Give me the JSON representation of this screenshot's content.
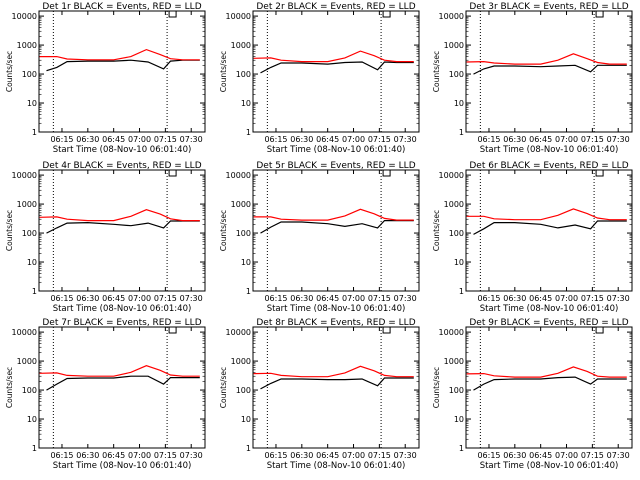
{
  "figure": {
    "ylabel": "Counts/sec",
    "xlabel": "Start Time (08-Nov-10 06:01:40)",
    "xticks": [
      "06:15",
      "06:30",
      "06:45",
      "07:00",
      "07:15",
      "07:30"
    ],
    "yticks": [
      "1",
      "10",
      "100",
      "1000",
      "10000"
    ]
  },
  "chart_data": [
    {
      "type": "line",
      "title": "Det 1r BLACK = Events, RED = LLD",
      "ylabel": "Counts/sec",
      "xlabel": "Start Time (08-Nov-10 06:01:40)",
      "yscale": "log",
      "ylim": [
        1,
        15000
      ],
      "xlim": [
        "06:01:40",
        "07:38:00"
      ],
      "markers": [
        "06:10",
        "07:16"
      ],
      "series": [
        {
          "name": "Events",
          "color": "#000000",
          "x": [
            "06:06",
            "06:12",
            "06:18",
            "06:30",
            "06:45",
            "06:55",
            "07:05",
            "07:14",
            "07:18",
            "07:25",
            "07:35"
          ],
          "values": [
            130,
            170,
            270,
            280,
            280,
            300,
            260,
            150,
            280,
            300,
            300
          ]
        },
        {
          "name": "LLD",
          "color": "#ff0000",
          "x": [
            "06:02",
            "06:12",
            "06:18",
            "06:30",
            "06:45",
            "06:55",
            "07:04",
            "07:12",
            "07:18",
            "07:25",
            "07:35"
          ],
          "values": [
            400,
            400,
            330,
            310,
            310,
            400,
            700,
            470,
            340,
            310,
            310
          ]
        }
      ]
    },
    {
      "type": "line",
      "title": "Det 2r BLACK = Events, RED = LLD",
      "ylabel": "Counts/sec",
      "xlabel": "Start Time (08-Nov-10 06:01:40)",
      "yscale": "log",
      "ylim": [
        1,
        15000
      ],
      "xlim": [
        "06:01:40",
        "07:38:00"
      ],
      "markers": [
        "06:10",
        "07:16"
      ],
      "series": [
        {
          "name": "Events",
          "color": "#000000",
          "x": [
            "06:06",
            "06:12",
            "06:18",
            "06:30",
            "06:45",
            "06:55",
            "07:05",
            "07:14",
            "07:18",
            "07:25",
            "07:35"
          ],
          "values": [
            110,
            170,
            240,
            240,
            220,
            250,
            260,
            140,
            260,
            250,
            250
          ]
        },
        {
          "name": "LLD",
          "color": "#ff0000",
          "x": [
            "06:02",
            "06:12",
            "06:18",
            "06:30",
            "06:45",
            "06:55",
            "07:04",
            "07:12",
            "07:18",
            "07:25",
            "07:35"
          ],
          "values": [
            350,
            360,
            300,
            270,
            270,
            360,
            620,
            430,
            300,
            270,
            270
          ]
        }
      ]
    },
    {
      "type": "line",
      "title": "Det 3r BLACK = Events, RED = LLD",
      "ylabel": "Counts/sec",
      "xlabel": "Start Time (08-Nov-10 06:01:40)",
      "yscale": "log",
      "ylim": [
        1,
        15000
      ],
      "xlim": [
        "06:01:40",
        "07:38:00"
      ],
      "markers": [
        "06:10",
        "07:16"
      ],
      "series": [
        {
          "name": "Events",
          "color": "#000000",
          "x": [
            "06:06",
            "06:12",
            "06:18",
            "06:30",
            "06:45",
            "06:55",
            "07:05",
            "07:14",
            "07:18",
            "07:25",
            "07:35"
          ],
          "values": [
            100,
            150,
            190,
            190,
            180,
            190,
            200,
            120,
            200,
            200,
            200
          ]
        },
        {
          "name": "LLD",
          "color": "#ff0000",
          "x": [
            "06:02",
            "06:12",
            "06:18",
            "06:30",
            "06:45",
            "06:55",
            "07:04",
            "07:12",
            "07:18",
            "07:25",
            "07:35"
          ],
          "values": [
            260,
            270,
            240,
            220,
            220,
            300,
            500,
            340,
            250,
            220,
            220
          ]
        }
      ]
    },
    {
      "type": "line",
      "title": "Det 4r BLACK = Events, RED = LLD",
      "ylabel": "Counts/sec",
      "xlabel": "Start Time (08-Nov-10 06:01:40)",
      "yscale": "log",
      "ylim": [
        1,
        15000
      ],
      "xlim": [
        "06:01:40",
        "07:38:00"
      ],
      "markers": [
        "06:10",
        "07:16"
      ],
      "series": [
        {
          "name": "Events",
          "color": "#000000",
          "x": [
            "06:06",
            "06:12",
            "06:18",
            "06:30",
            "06:45",
            "06:55",
            "07:05",
            "07:14",
            "07:18",
            "07:25",
            "07:35"
          ],
          "values": [
            100,
            150,
            220,
            230,
            200,
            180,
            220,
            150,
            260,
            260,
            260
          ]
        },
        {
          "name": "LLD",
          "color": "#ff0000",
          "x": [
            "06:02",
            "06:12",
            "06:18",
            "06:30",
            "06:45",
            "06:55",
            "07:04",
            "07:12",
            "07:18",
            "07:25",
            "07:35"
          ],
          "values": [
            350,
            360,
            300,
            270,
            270,
            380,
            640,
            450,
            310,
            270,
            270
          ]
        }
      ]
    },
    {
      "type": "line",
      "title": "Det 5r BLACK = Events, RED = LLD",
      "ylabel": "Counts/sec",
      "xlabel": "Start Time (08-Nov-10 06:01:40)",
      "yscale": "log",
      "ylim": [
        1,
        15000
      ],
      "xlim": [
        "06:01:40",
        "07:38:00"
      ],
      "markers": [
        "06:10",
        "07:16"
      ],
      "series": [
        {
          "name": "Events",
          "color": "#000000",
          "x": [
            "06:06",
            "06:12",
            "06:18",
            "06:30",
            "06:45",
            "06:55",
            "07:05",
            "07:14",
            "07:18",
            "07:25",
            "07:35"
          ],
          "values": [
            100,
            160,
            240,
            240,
            210,
            170,
            210,
            150,
            270,
            270,
            270
          ]
        },
        {
          "name": "LLD",
          "color": "#ff0000",
          "x": [
            "06:02",
            "06:12",
            "06:18",
            "06:30",
            "06:45",
            "06:55",
            "07:04",
            "07:12",
            "07:18",
            "07:25",
            "07:35"
          ],
          "values": [
            360,
            360,
            300,
            280,
            280,
            390,
            660,
            460,
            320,
            280,
            280
          ]
        }
      ]
    },
    {
      "type": "line",
      "title": "Det 6r BLACK = Events, RED = LLD",
      "ylabel": "Counts/sec",
      "xlabel": "Start Time (08-Nov-10 06:01:40)",
      "yscale": "log",
      "ylim": [
        1,
        15000
      ],
      "xlim": [
        "06:01:40",
        "07:38:00"
      ],
      "markers": [
        "06:10",
        "07:16"
      ],
      "series": [
        {
          "name": "Events",
          "color": "#000000",
          "x": [
            "06:06",
            "06:12",
            "06:18",
            "06:30",
            "06:45",
            "06:55",
            "07:05",
            "07:14",
            "07:18",
            "07:25",
            "07:35"
          ],
          "values": [
            90,
            140,
            230,
            230,
            200,
            150,
            190,
            140,
            260,
            260,
            260
          ]
        },
        {
          "name": "LLD",
          "color": "#ff0000",
          "x": [
            "06:02",
            "06:12",
            "06:18",
            "06:30",
            "06:45",
            "06:55",
            "07:04",
            "07:12",
            "07:18",
            "07:25",
            "07:35"
          ],
          "values": [
            380,
            380,
            310,
            290,
            290,
            410,
            680,
            470,
            330,
            290,
            290
          ]
        }
      ]
    },
    {
      "type": "line",
      "title": "Det 7r BLACK = Events, RED = LLD",
      "ylabel": "Counts/sec",
      "xlabel": "Start Time (08-Nov-10 06:01:40)",
      "yscale": "log",
      "ylim": [
        1,
        15000
      ],
      "xlim": [
        "06:01:40",
        "07:38:00"
      ],
      "markers": [
        "06:10",
        "07:16"
      ],
      "series": [
        {
          "name": "Events",
          "color": "#000000",
          "x": [
            "06:06",
            "06:12",
            "06:18",
            "06:30",
            "06:45",
            "06:55",
            "07:05",
            "07:14",
            "07:18",
            "07:25",
            "07:35"
          ],
          "values": [
            100,
            160,
            250,
            260,
            260,
            300,
            300,
            160,
            270,
            270,
            270
          ]
        },
        {
          "name": "LLD",
          "color": "#ff0000",
          "x": [
            "06:02",
            "06:12",
            "06:18",
            "06:30",
            "06:45",
            "06:55",
            "07:04",
            "07:12",
            "07:18",
            "07:25",
            "07:35"
          ],
          "values": [
            380,
            390,
            320,
            300,
            300,
            410,
            690,
            480,
            330,
            300,
            300
          ]
        }
      ]
    },
    {
      "type": "line",
      "title": "Det 8r BLACK = Events, RED = LLD",
      "ylabel": "Counts/sec",
      "xlabel": "Start Time (08-Nov-10 06:01:40)",
      "yscale": "log",
      "ylim": [
        1,
        15000
      ],
      "xlim": [
        "06:01:40",
        "07:38:00"
      ],
      "markers": [
        "06:10",
        "07:16"
      ],
      "series": [
        {
          "name": "Events",
          "color": "#000000",
          "x": [
            "06:06",
            "06:12",
            "06:18",
            "06:30",
            "06:45",
            "06:55",
            "07:05",
            "07:14",
            "07:18",
            "07:25",
            "07:35"
          ],
          "values": [
            110,
            170,
            240,
            240,
            230,
            230,
            240,
            140,
            260,
            260,
            260
          ]
        },
        {
          "name": "LLD",
          "color": "#ff0000",
          "x": [
            "06:02",
            "06:12",
            "06:18",
            "06:30",
            "06:45",
            "06:55",
            "07:04",
            "07:12",
            "07:18",
            "07:25",
            "07:35"
          ],
          "values": [
            370,
            380,
            320,
            290,
            290,
            390,
            660,
            460,
            320,
            290,
            290
          ]
        }
      ]
    },
    {
      "type": "line",
      "title": "Det 9r BLACK = Events, RED = LLD",
      "ylabel": "Counts/sec",
      "xlabel": "Start Time (08-Nov-10 06:01:40)",
      "yscale": "log",
      "ylim": [
        1,
        15000
      ],
      "xlim": [
        "06:01:40",
        "07:38:00"
      ],
      "markers": [
        "06:10",
        "07:16"
      ],
      "series": [
        {
          "name": "Events",
          "color": "#000000",
          "x": [
            "06:06",
            "06:12",
            "06:18",
            "06:30",
            "06:45",
            "06:55",
            "07:05",
            "07:14",
            "07:18",
            "07:25",
            "07:35"
          ],
          "values": [
            100,
            160,
            230,
            240,
            240,
            270,
            280,
            160,
            240,
            240,
            240
          ]
        },
        {
          "name": "LLD",
          "color": "#ff0000",
          "x": [
            "06:02",
            "06:12",
            "06:18",
            "06:30",
            "06:45",
            "06:55",
            "07:04",
            "07:12",
            "07:18",
            "07:25",
            "07:35"
          ],
          "values": [
            360,
            370,
            310,
            280,
            280,
            380,
            630,
            440,
            300,
            280,
            280
          ]
        }
      ]
    }
  ]
}
